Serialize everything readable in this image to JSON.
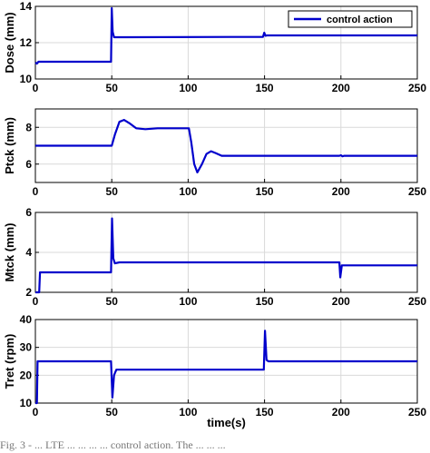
{
  "colors": {
    "line": "#0000cc",
    "grid": "#d9d9d9",
    "axis": "#000000"
  },
  "caption": "Fig. 3 - ... LTE ... ... ... ... control action. The ... ... ...",
  "chart_data": [
    {
      "type": "line",
      "ylabel": "Dose (mm)",
      "xlabel": "",
      "xlim": [
        0,
        250
      ],
      "ylim": [
        10,
        14
      ],
      "xticks": [
        "0",
        "50",
        "100",
        "150",
        "200",
        "250"
      ],
      "yticks": [
        "10",
        "12",
        "14"
      ],
      "grid": true,
      "legend": {
        "entries": [
          "control action"
        ],
        "placement": "top-right"
      },
      "series": [
        {
          "name": "control action",
          "points": [
            [
              0,
              10.9
            ],
            [
              1,
              10.85
            ],
            [
              2,
              10.95
            ],
            [
              49.5,
              10.95
            ],
            [
              50,
              13.9
            ],
            [
              50.6,
              12.6
            ],
            [
              51.5,
              12.3
            ],
            [
              60,
              12.3
            ],
            [
              149,
              12.32
            ],
            [
              149.8,
              12.55
            ],
            [
              150.6,
              12.38
            ],
            [
              151.5,
              12.4
            ],
            [
              250,
              12.4
            ]
          ]
        }
      ]
    },
    {
      "type": "line",
      "ylabel": "Ptck (mm)",
      "xlabel": "",
      "xlim": [
        0,
        250
      ],
      "ylim": [
        5,
        9
      ],
      "xticks": [
        "0",
        "50",
        "100",
        "150",
        "200",
        "250"
      ],
      "yticks": [
        "6",
        "8"
      ],
      "grid": true,
      "series": [
        {
          "name": "",
          "points": [
            [
              0,
              7
            ],
            [
              50,
              7
            ],
            [
              52,
              7.6
            ],
            [
              55,
              8.3
            ],
            [
              58,
              8.4
            ],
            [
              62,
              8.2
            ],
            [
              66,
              7.95
            ],
            [
              72,
              7.9
            ],
            [
              80,
              7.95
            ],
            [
              99.5,
              7.95
            ],
            [
              100.5,
              7.95
            ],
            [
              102,
              7.2
            ],
            [
              104,
              6
            ],
            [
              106,
              5.55
            ],
            [
              109,
              6
            ],
            [
              112,
              6.55
            ],
            [
              115,
              6.7
            ],
            [
              118,
              6.6
            ],
            [
              122,
              6.45
            ],
            [
              130,
              6.45
            ],
            [
              199,
              6.45
            ],
            [
              200,
              6.48
            ],
            [
              201,
              6.42
            ],
            [
              202,
              6.45
            ],
            [
              250,
              6.45
            ]
          ]
        }
      ]
    },
    {
      "type": "line",
      "ylabel": "Mtck (mm)",
      "xlabel": "",
      "xlim": [
        0,
        250
      ],
      "ylim": [
        2,
        6
      ],
      "xticks": [
        "0",
        "50",
        "100",
        "150",
        "200",
        "250"
      ],
      "yticks": [
        "2",
        "4",
        "6"
      ],
      "grid": true,
      "series": [
        {
          "name": "",
          "points": [
            [
              0,
              2
            ],
            [
              2.5,
              2
            ],
            [
              3,
              3
            ],
            [
              49.5,
              3
            ],
            [
              50.2,
              5.7
            ],
            [
              51,
              3.7
            ],
            [
              52,
              3.45
            ],
            [
              55,
              3.5
            ],
            [
              199,
              3.5
            ],
            [
              199.6,
              2.75
            ],
            [
              200.6,
              3.35
            ],
            [
              250,
              3.35
            ]
          ]
        }
      ]
    },
    {
      "type": "line",
      "ylabel": "Tret (rpm)",
      "xlabel": "time(s)",
      "xlim": [
        0,
        250
      ],
      "ylim": [
        10,
        40
      ],
      "xticks": [
        "0",
        "50",
        "100",
        "150",
        "200",
        "250"
      ],
      "yticks": [
        "10",
        "20",
        "30",
        "40"
      ],
      "grid": true,
      "series": [
        {
          "name": "",
          "points": [
            [
              0,
              10
            ],
            [
              1,
              10
            ],
            [
              1.4,
              25
            ],
            [
              49.5,
              25
            ],
            [
              50.4,
              12
            ],
            [
              51.5,
              20
            ],
            [
              53,
              22
            ],
            [
              60,
              22
            ],
            [
              149.5,
              22
            ],
            [
              150.3,
              36
            ],
            [
              151.3,
              25.5
            ],
            [
              152.5,
              25
            ],
            [
              250,
              25
            ]
          ]
        }
      ]
    }
  ]
}
